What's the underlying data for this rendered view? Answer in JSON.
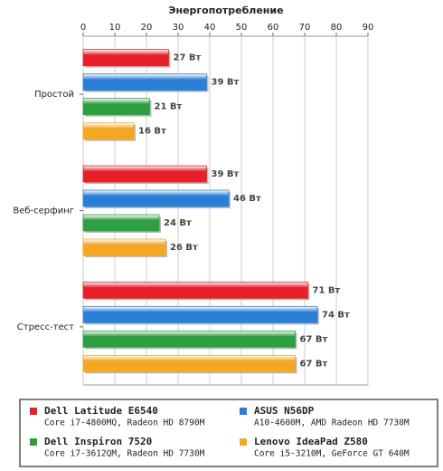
{
  "chart_data": {
    "type": "bar",
    "orientation": "horizontal",
    "title": "Энергопотребление",
    "categories": [
      "Простой",
      "Веб-серфинг",
      "Стресс-тест"
    ],
    "xlim": [
      0,
      90
    ],
    "xticks": [
      0,
      10,
      20,
      30,
      40,
      50,
      60,
      70,
      80,
      90
    ],
    "grid": true,
    "series": [
      {
        "name": "Dell Latitude E6540",
        "description": "Core i7-4800MQ, Radeon HD 8790M",
        "color": "#e8202a",
        "values": [
          27,
          39,
          71
        ],
        "value_labels": [
          "27 Вт",
          "39 Вт",
          "71 Вт"
        ]
      },
      {
        "name": "ASUS N56DP",
        "description": "A10-4600M, AMD Radeon HD 7730M",
        "color": "#2b7fd6",
        "values": [
          39,
          46,
          74
        ],
        "value_labels": [
          "39 Вт",
          "46 Вт",
          "74 Вт"
        ]
      },
      {
        "name": "Dell Inspiron 7520",
        "description": "Core i7-3612QM, Radeon HD 7730M",
        "color": "#2f9e3f",
        "values": [
          21,
          24,
          67
        ],
        "value_labels": [
          "21 Вт",
          "24 Вт",
          "67 Вт"
        ]
      },
      {
        "name": "Lenovo IdeaPad Z580",
        "description": "Core i5-3210M, GeForce GT 640M",
        "color": "#f5a623",
        "values": [
          16,
          26,
          67
        ],
        "value_labels": [
          "16 Вт",
          "26 Вт",
          "67 Вт"
        ]
      }
    ]
  }
}
